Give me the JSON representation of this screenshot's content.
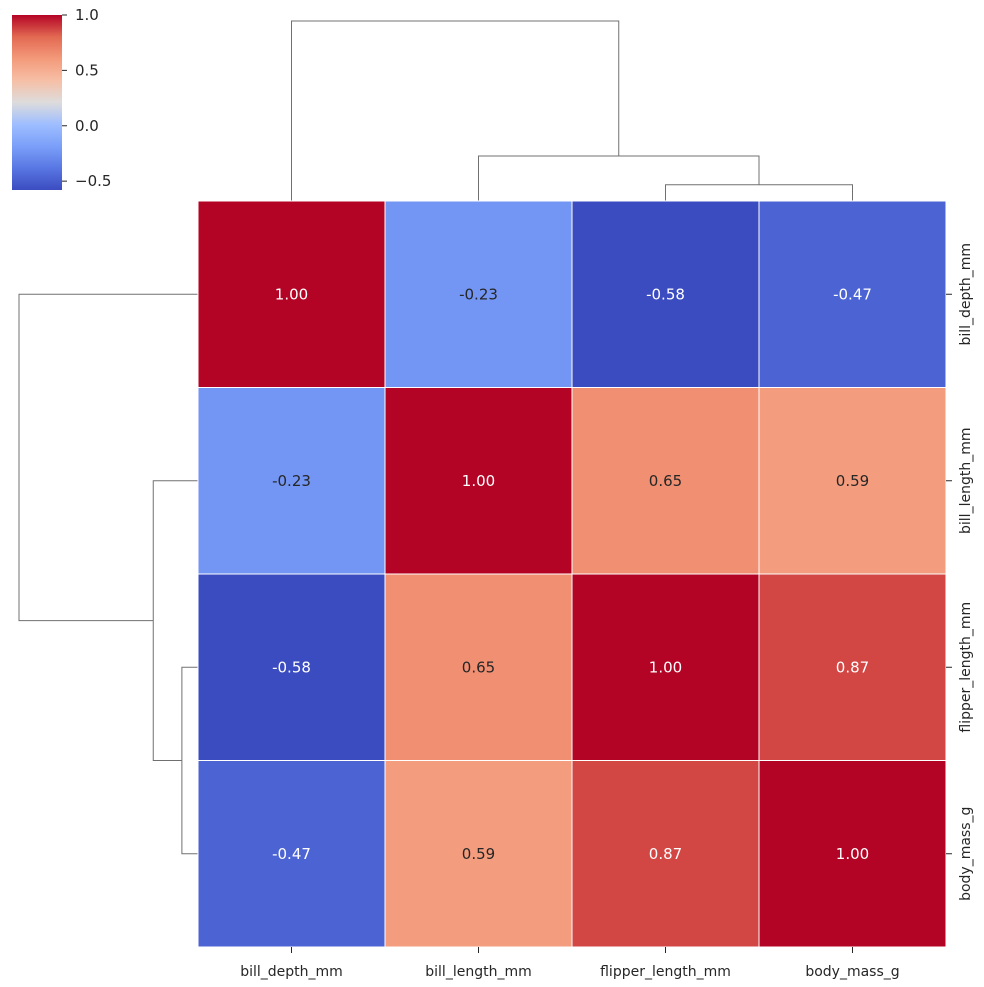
{
  "chart_data": {
    "type": "heatmap",
    "variant": "clustermap",
    "colormap": "coolwarm",
    "vmin": -0.58,
    "vmax": 1.0,
    "columns": [
      "bill_depth_mm",
      "bill_length_mm",
      "flipper_length_mm",
      "body_mass_g"
    ],
    "rows": [
      "bill_depth_mm",
      "bill_length_mm",
      "flipper_length_mm",
      "body_mass_g"
    ],
    "values": [
      [
        1.0,
        -0.23,
        -0.58,
        -0.47
      ],
      [
        -0.23,
        1.0,
        0.65,
        0.59
      ],
      [
        -0.58,
        0.65,
        1.0,
        0.87
      ],
      [
        -0.47,
        0.59,
        0.87,
        1.0
      ]
    ],
    "value_format": "0.00",
    "colorbar": {
      "ticks": [
        1.0,
        0.5,
        0.0,
        -0.5
      ],
      "tick_labels": [
        "1.0",
        "0.5",
        "0.0",
        "−0.5"
      ]
    },
    "dendrogram": {
      "clusters": [
        [
          "flipper_length_mm",
          "body_mass_g"
        ],
        [
          "bill_length_mm",
          [
            "flipper_length_mm",
            "body_mass_g"
          ]
        ],
        [
          "bill_depth_mm",
          [
            "bill_length_mm",
            [
              "flipper_length_mm",
              "body_mass_g"
            ]
          ]
        ]
      ],
      "merge_heights_relative": [
        0.09,
        0.25,
        1.0
      ]
    },
    "colors": {
      "grid": "#ffffff",
      "dendrogram": "#707070",
      "text_dark": "#262626",
      "text_light": "#ffffff"
    }
  }
}
